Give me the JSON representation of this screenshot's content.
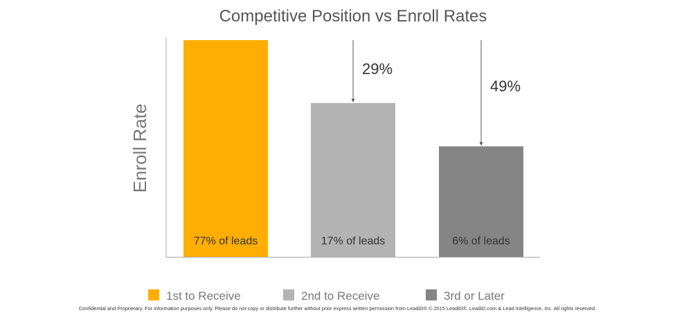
{
  "chart_data": {
    "type": "bar",
    "title": "Competitive Position vs Enroll Rates",
    "xlabel": "",
    "ylabel": "Enroll Rate",
    "ylim": [
      0,
      100
    ],
    "grid": false,
    "legend_position": "bottom",
    "categories": [
      "1st to Receive",
      "2nd to Receive",
      "3rd or Later"
    ],
    "values": [
      100,
      71,
      51
    ],
    "colors": [
      "#FFAE00",
      "#B3B3B3",
      "#858585"
    ],
    "bar_labels": [
      "77% of leads",
      "17% of leads",
      "6% of leads"
    ],
    "drop_annotations": [
      {
        "from_category": 0,
        "to_category": 1,
        "label": "29%"
      },
      {
        "from_category": 0,
        "to_category": 2,
        "label": "49%"
      }
    ]
  },
  "footer": "Confidential and Proprietary. For information purposes only. Please do not copy or distribute further without prior express written permission from LeadiD®.© 2015 LeadiD®, LeadiD.com & Lead Intelligence, Inc. All rights reserved."
}
